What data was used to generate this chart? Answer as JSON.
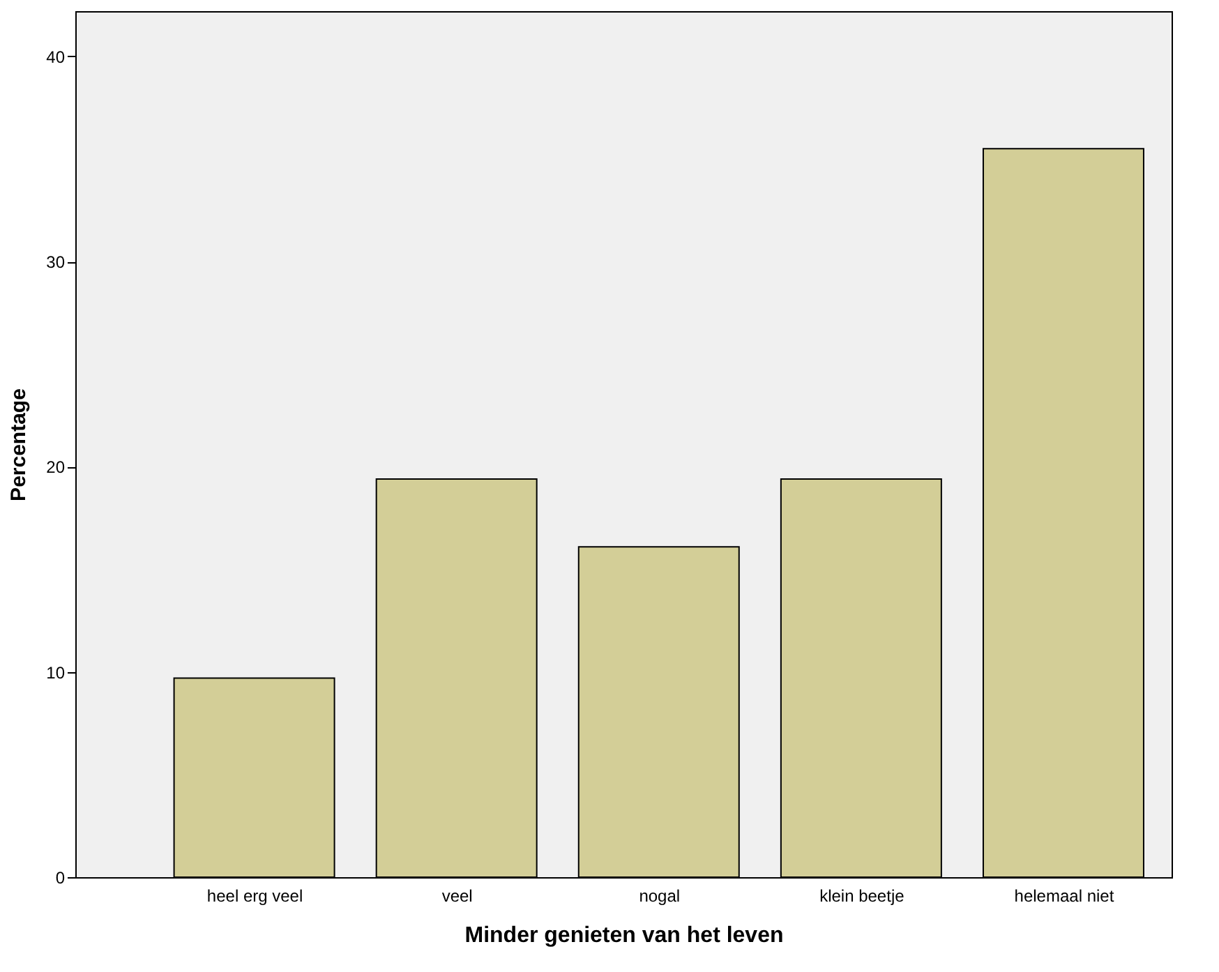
{
  "chart_data": {
    "type": "bar",
    "xlabel": "Minder genieten van het leven",
    "ylabel": "Percentage",
    "categories": [
      "heel erg veel",
      "veel",
      "nogal",
      "klein beetje",
      "helemaal niet"
    ],
    "values": [
      9.7,
      19.4,
      16.1,
      19.4,
      35.5
    ],
    "color": "#d3ce97",
    "ylim": [
      0,
      42.2
    ],
    "yticks": [
      0,
      10,
      20,
      30,
      40
    ],
    "grid": false
  }
}
